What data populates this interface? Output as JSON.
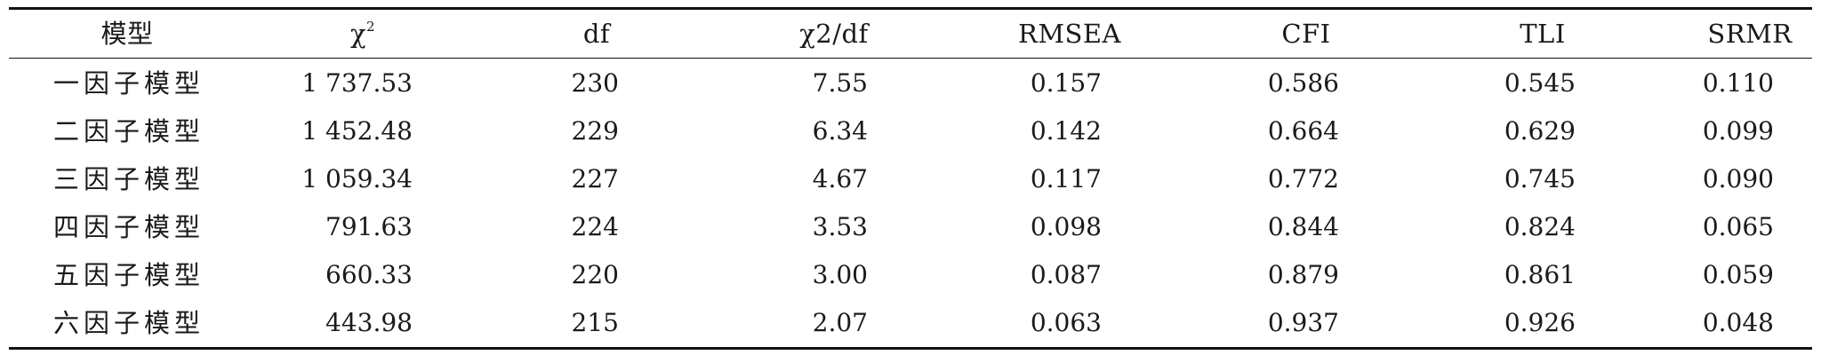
{
  "table": {
    "headers": {
      "model": "模型",
      "chi2_base": "χ",
      "chi2_sup": "2",
      "df": "df",
      "chi2_df": "χ2/df",
      "rmsea": "RMSEA",
      "cfi": "CFI",
      "tli": "TLI",
      "srmr": "SRMR"
    },
    "rows": [
      {
        "model": "一因子模型",
        "chi2": "1 737.53",
        "df": "230",
        "chi2_df": "7.55",
        "rmsea": "0.157",
        "cfi": "0.586",
        "tli": "0.545",
        "srmr": "0.110"
      },
      {
        "model": "二因子模型",
        "chi2": "1 452.48",
        "df": "229",
        "chi2_df": "6.34",
        "rmsea": "0.142",
        "cfi": "0.664",
        "tli": "0.629",
        "srmr": "0.099"
      },
      {
        "model": "三因子模型",
        "chi2": "1 059.34",
        "df": "227",
        "chi2_df": "4.67",
        "rmsea": "0.117",
        "cfi": "0.772",
        "tli": "0.745",
        "srmr": "0.090"
      },
      {
        "model": "四因子模型",
        "chi2": "791.63",
        "df": "224",
        "chi2_df": "3.53",
        "rmsea": "0.098",
        "cfi": "0.844",
        "tli": "0.824",
        "srmr": "0.065"
      },
      {
        "model": "五因子模型",
        "chi2": "660.33",
        "df": "220",
        "chi2_df": "3.00",
        "rmsea": "0.087",
        "cfi": "0.879",
        "tli": "0.861",
        "srmr": "0.059"
      },
      {
        "model": "六因子模型",
        "chi2": "443.98",
        "df": "215",
        "chi2_df": "2.07",
        "rmsea": "0.063",
        "cfi": "0.937",
        "tli": "0.926",
        "srmr": "0.048"
      }
    ]
  }
}
